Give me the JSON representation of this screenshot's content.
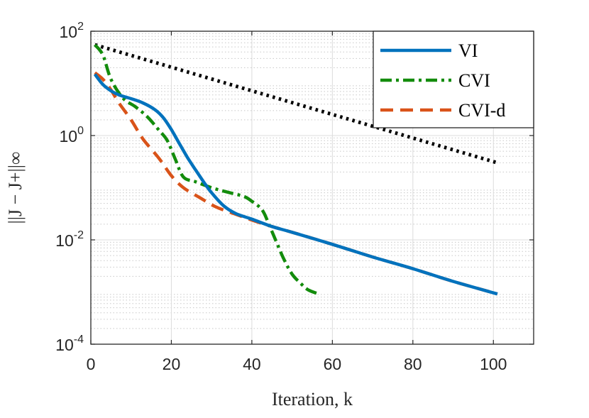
{
  "chart_data": {
    "type": "line",
    "xlabel": "Iteration, k",
    "ylabel": "||J − J+||∞",
    "xlim": [
      0,
      110
    ],
    "ylim": [
      0.0001,
      100
    ],
    "yscale": "log",
    "grid": true,
    "minor_grid": true,
    "legend_position": "top-right",
    "x_ticks": [
      0,
      20,
      40,
      60,
      80,
      100
    ],
    "x_tick_labels": [
      "0",
      "20",
      "40",
      "60",
      "80",
      "100"
    ],
    "y_ticks": [
      0.0001,
      0.01,
      1,
      100
    ],
    "y_tick_labels": [
      {
        "base": "10",
        "exp": "-4"
      },
      {
        "base": "10",
        "exp": "-2"
      },
      {
        "base": "10",
        "exp": "0"
      },
      {
        "base": "10",
        "exp": "2"
      }
    ],
    "series": [
      {
        "name": "VI",
        "color": "#0072BD",
        "style": "solid",
        "x": [
          1,
          3,
          5,
          7,
          10,
          13,
          16,
          18,
          20,
          22,
          24,
          26,
          28,
          30,
          33,
          36,
          40,
          45,
          50,
          60,
          70,
          80,
          90,
          101
        ],
        "y": [
          15,
          9.5,
          7.2,
          6.0,
          5.1,
          4.2,
          3.1,
          2.2,
          1.3,
          0.7,
          0.38,
          0.22,
          0.13,
          0.08,
          0.045,
          0.032,
          0.025,
          0.018,
          0.014,
          0.0082,
          0.0047,
          0.0028,
          0.0016,
          0.00092
        ]
      },
      {
        "name": "CVI",
        "color": "#138C0C",
        "style": "dashdot",
        "x": [
          1,
          3,
          5,
          8,
          11,
          14,
          17,
          19,
          21,
          23,
          26,
          30,
          34,
          38,
          40,
          42,
          43,
          44,
          46,
          48,
          50,
          52,
          54,
          57
        ],
        "y": [
          55,
          35,
          12,
          5.2,
          3.6,
          2.3,
          1.25,
          0.8,
          0.35,
          0.16,
          0.13,
          0.1,
          0.082,
          0.068,
          0.055,
          0.042,
          0.033,
          0.022,
          0.0095,
          0.0042,
          0.0022,
          0.0015,
          0.0011,
          0.0009
        ]
      },
      {
        "name": "CVI-d",
        "color": "#D95319",
        "style": "dashed",
        "x": [
          1,
          3,
          5,
          7,
          10,
          13,
          17,
          20,
          23,
          27,
          31,
          35,
          40,
          45,
          50,
          60,
          70,
          80,
          90,
          101
        ],
        "y": [
          16,
          12,
          7.5,
          4.2,
          2.0,
          0.85,
          0.36,
          0.17,
          0.1,
          0.065,
          0.043,
          0.033,
          0.024,
          0.018,
          0.014,
          0.0082,
          0.0047,
          0.0028,
          0.0016,
          0.00092
        ]
      },
      {
        "name": "",
        "color": "#000000",
        "style": "dotted",
        "x": [
          1,
          101
        ],
        "y": [
          55,
          0.3
        ]
      }
    ]
  }
}
